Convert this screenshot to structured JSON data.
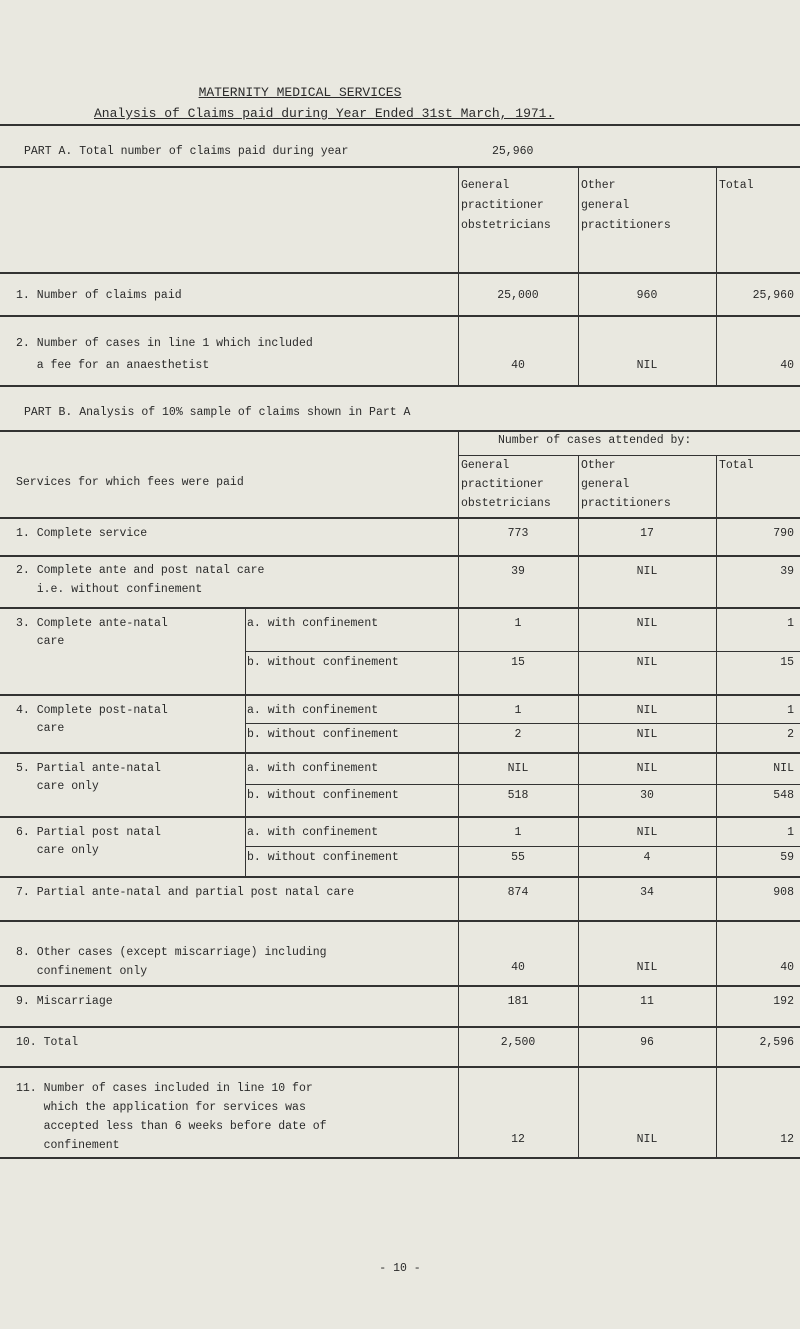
{
  "title": "MATERNITY MEDICAL SERVICES",
  "subtitle": "Analysis of Claims paid during Year Ended 31st March, 1971.",
  "part_a": {
    "heading": "PART A. Total number of claims paid during year",
    "total": "25,960",
    "columns": [
      "General\npractitioner\nobstetricians",
      "Other\ngeneral\npractitioners",
      "Total"
    ],
    "rows": [
      {
        "label": "1. Number of claims paid",
        "gp": "25,000",
        "other": "960",
        "total": "25,960"
      },
      {
        "label": "2. Number of cases in line 1 which included\n   a fee for an anaesthetist",
        "gp": "40",
        "other": "NIL",
        "total": "40"
      }
    ]
  },
  "part_b": {
    "heading": "PART B. Analysis of 10% sample of claims shown in Part A",
    "group_header": "Number of cases attended by:",
    "services_header": "Services for which fees were paid",
    "columns": [
      "General\npractitioner\nobstetricians",
      "Other\ngeneral\npractitioners",
      "Total"
    ],
    "rows": [
      {
        "label": "1. Complete service",
        "gp": "773",
        "other": "17",
        "total": "790"
      },
      {
        "label": "2. Complete ante and post natal care\n   i.e. without confinement",
        "gp": "39",
        "other": "NIL",
        "total": "39"
      },
      {
        "label": "3. Complete ante-natal\n   care",
        "sub": [
          {
            "label": "a. with confinement",
            "gp": "1",
            "other": "NIL",
            "total": "1"
          },
          {
            "label": "b. without confinement",
            "gp": "15",
            "other": "NIL",
            "total": "15"
          }
        ]
      },
      {
        "label": "4. Complete post-natal\n   care",
        "sub": [
          {
            "label": "a. with confinement",
            "gp": "1",
            "other": "NIL",
            "total": "1"
          },
          {
            "label": "b. without confinement",
            "gp": "2",
            "other": "NIL",
            "total": "2"
          }
        ]
      },
      {
        "label": "5. Partial ante-natal\n   care only",
        "sub": [
          {
            "label": "a. with confinement",
            "gp": "NIL",
            "other": "NIL",
            "total": "NIL"
          },
          {
            "label": "b. without confinement",
            "gp": "518",
            "other": "30",
            "total": "548"
          }
        ]
      },
      {
        "label": "6. Partial post natal\n   care only",
        "sub": [
          {
            "label": "a. with confinement",
            "gp": "1",
            "other": "NIL",
            "total": "1"
          },
          {
            "label": "b. without confinement",
            "gp": "55",
            "other": "4",
            "total": "59"
          }
        ]
      },
      {
        "label": "7. Partial ante-natal and partial post natal care",
        "gp": "874",
        "other": "34",
        "total": "908"
      },
      {
        "label": "8. Other cases (except miscarriage) including\n   confinement only",
        "gp": "40",
        "other": "NIL",
        "total": "40"
      },
      {
        "label": "9. Miscarriage",
        "gp": "181",
        "other": "11",
        "total": "192"
      },
      {
        "label": "10. Total",
        "gp": "2,500",
        "other": "96",
        "total": "2,596"
      },
      {
        "label": "11. Number of cases included in line 10 for\n    which the application for services was\n    accepted less than 6 weeks before date of\n    confinement",
        "gp": "12",
        "other": "NIL",
        "total": "12"
      }
    ]
  },
  "page_number": "- 10 -"
}
